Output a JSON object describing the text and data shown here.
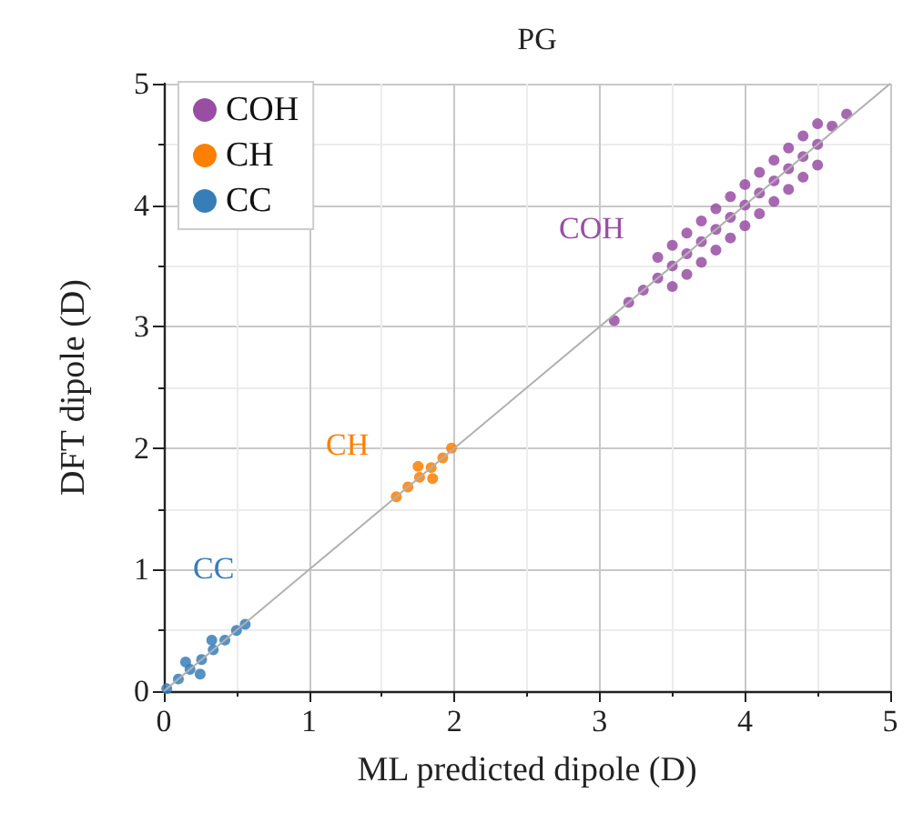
{
  "chart_data": {
    "type": "scatter",
    "title": "PG",
    "xlabel": "ML predicted dipole (D)",
    "ylabel": "DFT dipole (D)",
    "xlim": [
      0,
      5
    ],
    "ylim": [
      0,
      5
    ],
    "xticks": [
      0,
      1,
      2,
      3,
      4,
      5
    ],
    "yticks": [
      0,
      1,
      2,
      3,
      4,
      5
    ],
    "grid": true,
    "legend": "top left",
    "series": [
      {
        "name": "COH",
        "color": "#984ea3",
        "x": [
          3.1,
          3.2,
          3.3,
          3.4,
          3.5,
          3.6,
          3.7,
          3.8,
          3.9,
          4.0,
          4.1,
          4.2,
          4.3,
          4.4,
          4.5,
          4.6,
          4.7,
          3.4,
          3.5,
          3.6,
          3.7,
          3.8,
          3.9,
          4.0,
          4.1,
          4.2,
          4.3,
          4.4,
          4.5,
          3.5,
          3.6,
          3.7,
          3.8,
          3.9,
          4.0,
          4.1,
          4.2,
          4.3,
          4.4,
          4.5
        ],
        "values": [
          3.05,
          3.2,
          3.3,
          3.4,
          3.5,
          3.6,
          3.7,
          3.8,
          3.9,
          4.0,
          4.1,
          4.2,
          4.3,
          4.4,
          4.5,
          4.65,
          4.75,
          3.57,
          3.67,
          3.77,
          3.87,
          3.97,
          4.07,
          4.17,
          4.27,
          4.37,
          4.47,
          4.57,
          4.67,
          3.33,
          3.43,
          3.53,
          3.63,
          3.73,
          3.83,
          3.93,
          4.03,
          4.13,
          4.23,
          4.33
        ]
      },
      {
        "name": "CH",
        "color": "#ff7f00",
        "x": [
          1.6,
          1.68,
          1.76,
          1.84,
          1.92,
          1.98,
          1.75,
          1.85
        ],
        "values": [
          1.6,
          1.68,
          1.76,
          1.84,
          1.92,
          2.0,
          1.85,
          1.75
        ]
      },
      {
        "name": "CC",
        "color": "#377eb8",
        "x": [
          0.02,
          0.1,
          0.18,
          0.26,
          0.34,
          0.42,
          0.5,
          0.56,
          0.15,
          0.25,
          0.33
        ],
        "values": [
          0.02,
          0.1,
          0.18,
          0.26,
          0.34,
          0.42,
          0.5,
          0.55,
          0.24,
          0.14,
          0.42
        ]
      },
      {
        "type": "line",
        "color": "#b0b0b0",
        "x": [
          0,
          5
        ],
        "values": [
          0,
          5
        ]
      }
    ],
    "annotations": [
      "COH",
      "CH",
      "CC"
    ]
  }
}
